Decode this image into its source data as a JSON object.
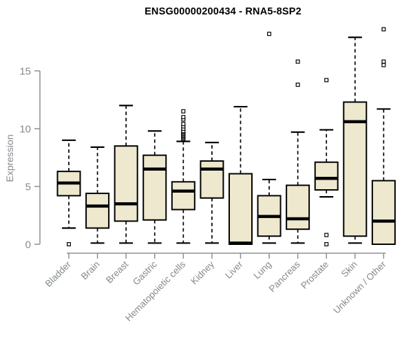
{
  "colors": {
    "box_fill": "#EDE8CE",
    "box_stroke": "#000000",
    "median": "#000000",
    "whisker": "#000000",
    "outlier_fill": "#FFFFFF",
    "axis_line": "#8F8F8F",
    "axis_text": "#85898D",
    "title_text": "#000000"
  },
  "chart_data": {
    "type": "boxplot",
    "title": "ENSG00000200434 - RNA5-8SP2",
    "xlabel": "",
    "ylabel": "Expression",
    "ylim": [
      0,
      18.6
    ],
    "yticks": [
      0,
      5,
      10,
      15
    ],
    "grid": false,
    "legend": "none",
    "categories": [
      "Bladder",
      "Brain",
      "Breast",
      "Gastric",
      "Hematopoietic cells",
      "Kidney",
      "Liver",
      "Lung",
      "Pancreas",
      "Prostate",
      "Skin",
      "Unknown / Other"
    ],
    "series": [
      {
        "category": "Bladder",
        "whisker_low": 1.4,
        "q1": 4.2,
        "median": 5.3,
        "q3": 6.3,
        "whisker_high": 9.0,
        "outliers": [
          0.0
        ]
      },
      {
        "category": "Brain",
        "whisker_low": 0.1,
        "q1": 1.4,
        "median": 3.3,
        "q3": 4.4,
        "whisker_high": 8.4,
        "outliers": []
      },
      {
        "category": "Breast",
        "whisker_low": 0.1,
        "q1": 2.0,
        "median": 3.5,
        "q3": 8.5,
        "whisker_high": 12.0,
        "outliers": []
      },
      {
        "category": "Gastric",
        "whisker_low": 0.1,
        "q1": 2.1,
        "median": 6.5,
        "q3": 7.7,
        "whisker_high": 9.8,
        "outliers": []
      },
      {
        "category": "Hematopoietic cells",
        "whisker_low": 0.1,
        "q1": 3.0,
        "median": 4.6,
        "q3": 5.4,
        "whisker_high": 8.9,
        "outliers": [
          9.1,
          9.2,
          9.3,
          9.4,
          9.5,
          9.6,
          9.7,
          9.8,
          10.0,
          10.2,
          10.4,
          10.8,
          11.0,
          11.5
        ]
      },
      {
        "category": "Kidney",
        "whisker_low": 0.1,
        "q1": 4.0,
        "median": 6.5,
        "q3": 7.2,
        "whisker_high": 8.8,
        "outliers": []
      },
      {
        "category": "Liver",
        "whisker_low": 0.0,
        "q1": 0.0,
        "median": 0.1,
        "q3": 6.1,
        "whisker_high": 11.9,
        "outliers": []
      },
      {
        "category": "Lung",
        "whisker_low": 0.1,
        "q1": 0.7,
        "median": 2.4,
        "q3": 4.2,
        "whisker_high": 5.6,
        "outliers": [
          18.2
        ]
      },
      {
        "category": "Pancreas",
        "whisker_low": 0.1,
        "q1": 1.3,
        "median": 2.2,
        "q3": 5.1,
        "whisker_high": 9.7,
        "outliers": [
          13.8,
          15.8
        ]
      },
      {
        "category": "Prostate",
        "whisker_low": 4.1,
        "q1": 4.7,
        "median": 5.7,
        "q3": 7.1,
        "whisker_high": 9.9,
        "outliers": [
          14.2,
          0.8,
          0.0
        ]
      },
      {
        "category": "Skin",
        "whisker_low": 0.1,
        "q1": 0.7,
        "median": 10.6,
        "q3": 12.3,
        "whisker_high": 17.9,
        "outliers": []
      },
      {
        "category": "Unknown / Other",
        "whisker_low": 0.0,
        "q1": 0.0,
        "median": 2.0,
        "q3": 5.5,
        "whisker_high": 11.7,
        "outliers": [
          15.5,
          15.8,
          18.6
        ]
      }
    ]
  }
}
